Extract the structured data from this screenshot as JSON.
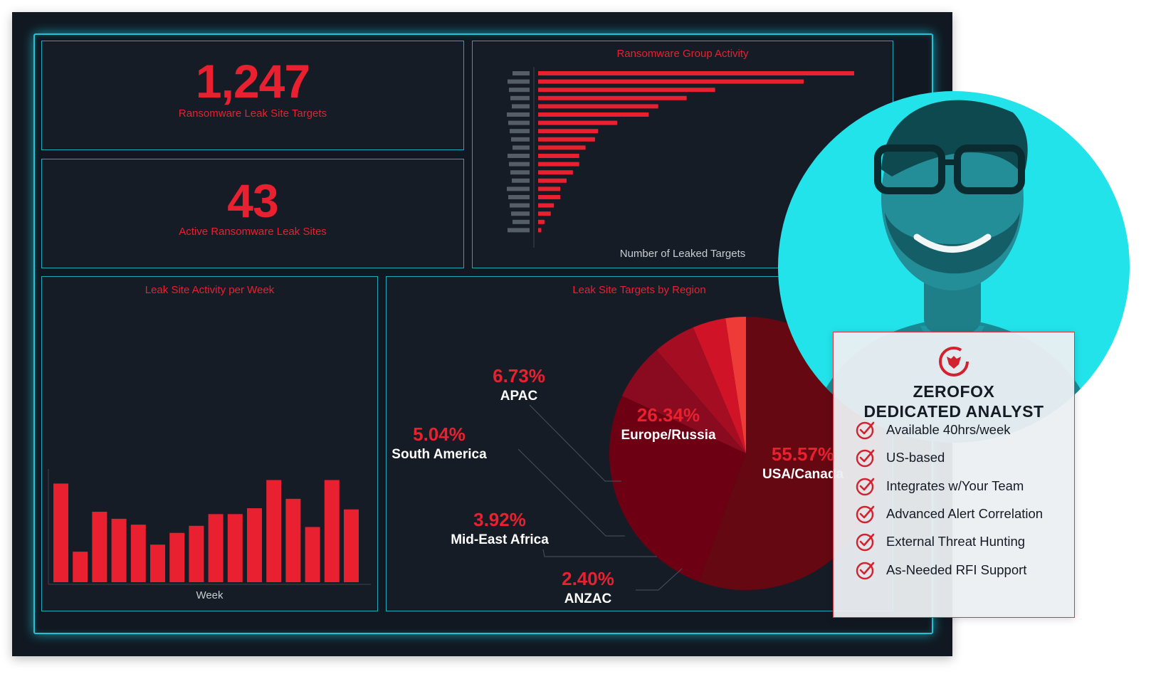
{
  "kpis": {
    "targets": {
      "value": "1,247",
      "label": "Ransomware Leak Site Targets"
    },
    "sites": {
      "value": "43",
      "label": "Active Ransomware Leak Sites"
    }
  },
  "colors": {
    "accent_red": "#e8202f",
    "frame_cyan": "#1fc3d6",
    "dashboard_bg": "#111821",
    "photo_bg": "#22e3ea"
  },
  "chart_data": [
    {
      "type": "bar",
      "orientation": "horizontal",
      "title": "Ransomware Group Activity",
      "xlabel": "Number of Leaked Targets",
      "categories_redacted": true,
      "values": [
        100,
        84,
        56,
        47,
        38,
        35,
        25,
        19,
        18,
        15,
        13,
        13,
        11,
        9,
        7,
        7,
        5,
        4,
        2,
        1
      ],
      "color": "#e8202f"
    },
    {
      "type": "bar",
      "title": "Leak Site Activity per Week",
      "xlabel": "Week",
      "values": [
        84,
        26,
        60,
        54,
        49,
        32,
        42,
        48,
        58,
        58,
        63,
        87,
        71,
        47,
        87,
        62
      ],
      "ylim": [
        0,
        100
      ],
      "color": "#e8202f"
    },
    {
      "type": "pie",
      "title": "Leak Site Targets by Region",
      "slices": [
        {
          "name": "USA/Canada",
          "pct_label": "55.57%",
          "value": 55.57,
          "color": "#650812"
        },
        {
          "name": "Europe/Russia",
          "pct_label": "26.34%",
          "value": 26.34,
          "color": "#6d0013"
        },
        {
          "name": "APAC",
          "pct_label": "6.73%",
          "value": 6.73,
          "color": "#8a0a1f"
        },
        {
          "name": "South America",
          "pct_label": "5.04%",
          "value": 5.04,
          "color": "#a40d22"
        },
        {
          "name": "Mid-East Africa",
          "pct_label": "3.92%",
          "value": 3.92,
          "color": "#d11327"
        },
        {
          "name": "ANZAC",
          "pct_label": "2.40%",
          "value": 2.4,
          "color": "#ef3b37"
        }
      ]
    }
  ],
  "analyst_card": {
    "title_line1": "ZEROFOX",
    "title_line2": "DEDICATED ANALYST",
    "logo_icon": "zerofox-logo-icon",
    "check_icon": "check-circle-icon",
    "features": [
      "Available 40hrs/week",
      "US-based",
      "Integrates w/Your Team",
      "Advanced Alert Correlation",
      "External Threat Hunting",
      "As-Needed RFI Support"
    ]
  }
}
